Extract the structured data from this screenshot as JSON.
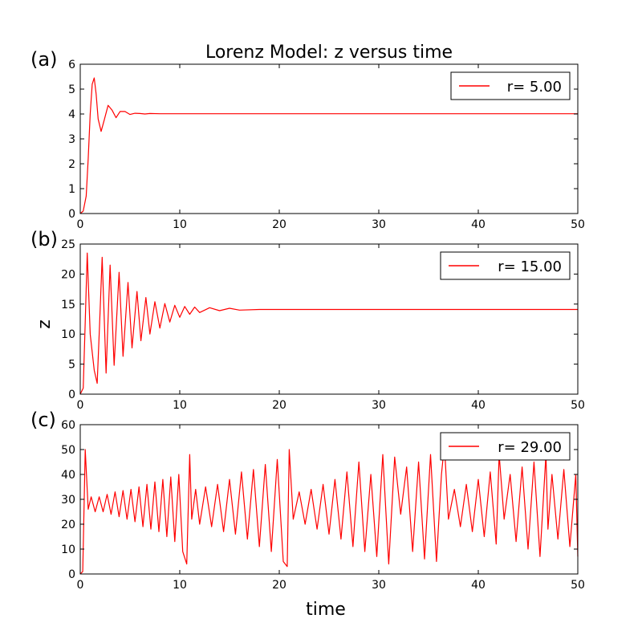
{
  "chart_data": {
    "type": "line",
    "title": "Lorenz Model: z versus time",
    "xlabel": "time",
    "ylabel": "z",
    "color": "#ff0000",
    "panels": [
      {
        "label": "(a)",
        "legend": "r= 5.00",
        "xlim": [
          0,
          50
        ],
        "ylim": [
          0,
          6
        ],
        "xticks": [
          "0",
          "10",
          "20",
          "30",
          "40",
          "50"
        ],
        "yticks": [
          "0",
          "1",
          "2",
          "3",
          "4",
          "5",
          "6"
        ],
        "x": [
          0,
          0.3,
          0.6,
          0.8,
          1.0,
          1.2,
          1.4,
          1.6,
          1.8,
          2.1,
          2.4,
          2.8,
          3.2,
          3.6,
          4.0,
          4.5,
          5.0,
          5.5,
          6.0,
          6.5,
          7.0,
          8.0,
          10,
          20,
          30,
          40,
          50
        ],
        "y": [
          0,
          0.1,
          0.7,
          2.2,
          4.0,
          5.2,
          5.45,
          4.8,
          3.8,
          3.3,
          3.75,
          4.35,
          4.15,
          3.85,
          4.1,
          4.1,
          3.98,
          4.03,
          4.02,
          4.0,
          4.02,
          4.01,
          4.01,
          4.01,
          4.01,
          4.01,
          4.01
        ]
      },
      {
        "label": "(b)",
        "legend": "r= 15.00",
        "xlim": [
          0,
          50
        ],
        "ylim": [
          0,
          25
        ],
        "xticks": [
          "0",
          "10",
          "20",
          "30",
          "40",
          "50"
        ],
        "yticks": [
          "0",
          "5",
          "10",
          "15",
          "20",
          "25"
        ],
        "x": [
          0,
          0.3,
          0.5,
          0.7,
          1.0,
          1.4,
          1.7,
          1.95,
          2.2,
          2.6,
          3.0,
          3.4,
          3.9,
          4.3,
          4.8,
          5.2,
          5.7,
          6.1,
          6.6,
          7.0,
          7.5,
          8.0,
          8.5,
          9.0,
          9.5,
          10.0,
          10.5,
          11.0,
          11.5,
          12.0,
          13,
          14,
          15,
          16,
          18,
          20,
          30,
          40,
          50
        ],
        "y": [
          0,
          1,
          12,
          23.5,
          10,
          4,
          1.8,
          12,
          22.8,
          3.5,
          21.5,
          4.8,
          20.3,
          6.3,
          18.6,
          7.7,
          17.1,
          8.9,
          16.1,
          10.0,
          15.4,
          11.0,
          15.1,
          12.0,
          14.8,
          12.8,
          14.6,
          13.3,
          14.5,
          13.6,
          14.4,
          13.9,
          14.3,
          14.0,
          14.1,
          14.1,
          14.1,
          14.1,
          14.1
        ]
      },
      {
        "label": "(c)",
        "legend": "r= 29.00",
        "xlim": [
          0,
          50
        ],
        "ylim": [
          0,
          60
        ],
        "xticks": [
          "0",
          "10",
          "20",
          "30",
          "40",
          "50"
        ],
        "yticks": [
          "0",
          "10",
          "20",
          "30",
          "40",
          "50",
          "60"
        ],
        "x": [
          0,
          0.25,
          0.5,
          0.8,
          1.1,
          1.5,
          1.9,
          2.3,
          2.7,
          3.1,
          3.5,
          3.9,
          4.3,
          4.7,
          5.1,
          5.5,
          5.9,
          6.3,
          6.7,
          7.1,
          7.5,
          7.9,
          8.3,
          8.7,
          9.1,
          9.5,
          9.9,
          10.3,
          10.7,
          11.0,
          11.2,
          11.6,
          12.0,
          12.6,
          13.2,
          13.8,
          14.4,
          15.0,
          15.6,
          16.2,
          16.8,
          17.4,
          18.0,
          18.6,
          19.2,
          19.8,
          20.4,
          20.8,
          21.0,
          21.4,
          22.0,
          22.6,
          23.2,
          23.8,
          24.4,
          25.0,
          25.6,
          26.2,
          26.8,
          27.4,
          28.0,
          28.6,
          29.2,
          29.8,
          30.4,
          31.0,
          31.6,
          32.2,
          32.8,
          33.4,
          34.0,
          34.6,
          35.2,
          35.8,
          36.3,
          36.6,
          37.0,
          37.6,
          38.2,
          38.8,
          39.4,
          40.0,
          40.6,
          41.2,
          41.8,
          42.1,
          42.6,
          43.2,
          43.8,
          44.4,
          45.0,
          45.6,
          46.2,
          46.8,
          47.0,
          47.4,
          48.0,
          48.6,
          49.2,
          49.8,
          50
        ],
        "y": [
          0,
          1,
          50,
          26,
          31,
          25,
          31,
          25,
          32,
          24,
          33,
          23,
          33.5,
          22,
          34,
          21,
          35,
          19,
          36,
          18,
          37,
          17,
          38,
          15,
          39,
          13,
          40,
          9,
          4,
          48,
          22,
          34,
          20,
          35,
          19,
          36,
          17,
          38,
          16,
          41,
          14,
          42,
          11,
          44,
          9,
          46,
          5,
          3,
          50,
          22,
          33,
          20,
          34,
          18,
          36,
          16,
          38,
          14,
          41,
          11,
          45,
          9,
          40,
          7,
          48,
          4,
          47,
          24,
          43,
          9,
          45,
          6,
          48,
          5,
          40,
          52,
          22,
          34,
          19,
          36,
          17,
          38,
          15,
          41,
          12,
          48,
          22,
          40,
          13,
          43,
          10,
          45,
          7,
          48,
          18,
          40,
          14,
          42,
          11,
          40,
          7
        ]
      }
    ]
  }
}
